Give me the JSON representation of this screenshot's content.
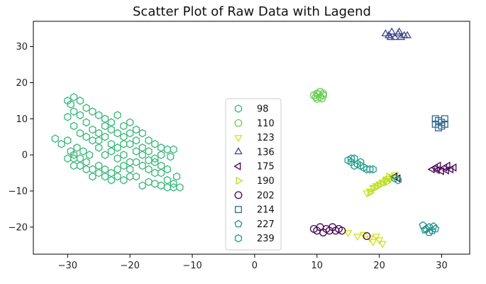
{
  "chart_data": {
    "type": "scatter",
    "title": "Scatter Plot of Raw Data with Lagend",
    "xlabel": "",
    "ylabel": "",
    "xlim": [
      -35.5,
      34.5
    ],
    "ylim": [
      -27.5,
      37
    ],
    "x_ticks": [
      -30,
      -20,
      -10,
      0,
      10,
      20,
      30
    ],
    "x_tick_labels": [
      "−30",
      "−20",
      "−10",
      "0",
      "10",
      "20",
      "30"
    ],
    "y_ticks": [
      -20,
      -10,
      0,
      10,
      20,
      30
    ],
    "y_tick_labels": [
      "−20",
      "−10",
      "0",
      "10",
      "20",
      "30"
    ],
    "grid": false,
    "legend_position": "lower-center",
    "series": [
      {
        "name": "98",
        "marker": "hexagon",
        "color": "#35b779",
        "points": [
          [
            -32,
            4.5
          ],
          [
            -31,
            3
          ],
          [
            -30,
            4
          ],
          [
            -29.5,
            1
          ],
          [
            -29,
            0
          ],
          [
            -28.5,
            2
          ],
          [
            -27.5,
            1
          ],
          [
            -26.5,
            0
          ],
          [
            -25,
            2
          ],
          [
            -24,
            0
          ],
          [
            -23,
            1
          ],
          [
            -22,
            -1
          ],
          [
            -21,
            0
          ],
          [
            -20,
            -2
          ],
          [
            -19,
            -2
          ],
          [
            -18,
            -3
          ],
          [
            -17,
            -4
          ],
          [
            -16,
            -5
          ],
          [
            -15,
            -5
          ],
          [
            -14,
            -7
          ],
          [
            -13,
            -8
          ],
          [
            -12,
            -9
          ],
          [
            -12.5,
            -6
          ],
          [
            -13,
            -9
          ],
          [
            -14,
            -9
          ],
          [
            -15,
            -8.5
          ],
          [
            -16,
            -8
          ],
          [
            -17,
            -7.5
          ],
          [
            -18,
            -8.5
          ],
          [
            -19,
            -6
          ],
          [
            -20,
            -4
          ],
          [
            -21,
            -3
          ],
          [
            -22,
            -4
          ],
          [
            -23,
            -5
          ],
          [
            -24,
            -4
          ],
          [
            -25,
            -3
          ],
          [
            -26,
            -4
          ],
          [
            -27,
            -2
          ],
          [
            -28,
            -1
          ],
          [
            -29,
            -3
          ],
          [
            -30,
            15
          ],
          [
            -29.5,
            14
          ],
          [
            -29,
            16
          ],
          [
            -28,
            15
          ],
          [
            -27,
            13
          ],
          [
            -26,
            12
          ],
          [
            -25,
            11
          ],
          [
            -24,
            10
          ],
          [
            -23,
            9
          ],
          [
            -22,
            11
          ],
          [
            -21,
            8
          ],
          [
            -20,
            9
          ],
          [
            -19,
            7
          ],
          [
            -18,
            6
          ],
          [
            -17,
            4
          ],
          [
            -16,
            3
          ],
          [
            -15,
            2
          ],
          [
            -14,
            1.5
          ],
          [
            -13,
            1.5
          ],
          [
            -13.5,
            -0.5
          ],
          [
            -15,
            0
          ],
          [
            -16,
            -1
          ],
          [
            -17,
            -1.5
          ],
          [
            -18,
            0
          ],
          [
            -19,
            1
          ],
          [
            -20,
            3
          ],
          [
            -21,
            5
          ],
          [
            -22,
            6
          ],
          [
            -23,
            7
          ],
          [
            -24,
            8
          ],
          [
            -25,
            6
          ],
          [
            -26,
            7
          ],
          [
            -27,
            9
          ],
          [
            -28,
            11
          ],
          [
            -29,
            12
          ],
          [
            -30,
            10.5
          ],
          [
            -29,
            8
          ],
          [
            -28,
            6
          ],
          [
            -27,
            5
          ],
          [
            -26,
            4
          ],
          [
            -25,
            4
          ],
          [
            -24,
            5
          ],
          [
            -23,
            3
          ],
          [
            -22,
            2
          ],
          [
            -21,
            3
          ],
          [
            -20,
            6
          ],
          [
            -19,
            4
          ],
          [
            -18,
            2
          ],
          [
            -17,
            1
          ],
          [
            -16,
            -2
          ],
          [
            -15,
            -3
          ],
          [
            -14,
            -4
          ],
          [
            -20,
            -6
          ],
          [
            -21,
            -7
          ],
          [
            -22,
            -6
          ],
          [
            -23,
            -7
          ],
          [
            -24,
            -6
          ],
          [
            -25,
            -5
          ],
          [
            -26,
            -6
          ],
          [
            -27,
            -4
          ],
          [
            -28,
            -3
          ],
          [
            -29,
            -1
          ],
          [
            -30,
            -1
          ]
        ]
      },
      {
        "name": "110",
        "marker": "circle",
        "color": "#6ccd5a",
        "points": [
          [
            9.5,
            16.5
          ],
          [
            10,
            17
          ],
          [
            10.5,
            16
          ],
          [
            11,
            16.5
          ],
          [
            10,
            15.5
          ],
          [
            10.5,
            17.5
          ],
          [
            9.8,
            16
          ],
          [
            11,
            17
          ],
          [
            10.8,
            15.6
          ],
          [
            10.2,
            16.8
          ]
        ]
      },
      {
        "name": "123",
        "marker": "triangle-down",
        "color": "#d2e21b",
        "points": [
          [
            15,
            -21.5
          ],
          [
            16.5,
            -22.5
          ],
          [
            17.5,
            -22
          ],
          [
            18.5,
            -23
          ],
          [
            19,
            -24
          ],
          [
            19.5,
            -22.5
          ],
          [
            20,
            -23.5
          ],
          [
            20.5,
            -24.5
          ],
          [
            18,
            -10.5
          ],
          [
            18.5,
            -10
          ],
          [
            19,
            -9
          ],
          [
            19.5,
            -8.5
          ],
          [
            20,
            -8
          ],
          [
            20.5,
            -7.5
          ],
          [
            21,
            -7
          ],
          [
            21.5,
            -6.5
          ],
          [
            22,
            -6
          ],
          [
            22.5,
            -5.5
          ]
        ]
      },
      {
        "name": "136",
        "marker": "triangle-up",
        "color": "#3e4989",
        "points": [
          [
            21,
            33.5
          ],
          [
            21.5,
            33
          ],
          [
            22,
            34
          ],
          [
            22.5,
            32.5
          ],
          [
            23,
            33.5
          ],
          [
            23.5,
            32.5
          ],
          [
            24,
            33
          ],
          [
            24.5,
            33
          ],
          [
            21.8,
            32.5
          ],
          [
            23.2,
            34
          ]
        ]
      },
      {
        "name": "175",
        "marker": "triangle-left",
        "color": "#440154",
        "points": [
          [
            28.5,
            -4
          ],
          [
            29,
            -3.5
          ],
          [
            29.5,
            -3
          ],
          [
            30,
            -4.5
          ],
          [
            30.5,
            -3.5
          ],
          [
            31,
            -3
          ],
          [
            31.5,
            -4
          ],
          [
            32,
            -3.5
          ],
          [
            29.3,
            -4.2
          ],
          [
            30.8,
            -4.3
          ],
          [
            22.5,
            -6
          ],
          [
            23,
            -6.5
          ]
        ]
      },
      {
        "name": "190",
        "marker": "triangle-right",
        "color": "#b5de2b",
        "points": [
          [
            18.5,
            -10.5
          ],
          [
            19,
            -9.5
          ],
          [
            19.5,
            -9
          ],
          [
            20,
            -8.5
          ],
          [
            20.5,
            -8
          ],
          [
            21,
            -7
          ],
          [
            21.5,
            -6
          ],
          [
            22,
            -6.5
          ],
          [
            21.2,
            -7.6
          ]
        ]
      },
      {
        "name": "202",
        "marker": "circle",
        "color": "#440154",
        "points": [
          [
            9.5,
            -20.5
          ],
          [
            10,
            -21
          ],
          [
            10.5,
            -20
          ],
          [
            11,
            -21.5
          ],
          [
            11.5,
            -20.5
          ],
          [
            12,
            -21
          ],
          [
            12.5,
            -20
          ],
          [
            13,
            -21
          ],
          [
            13.5,
            -20.5
          ],
          [
            14,
            -21
          ],
          [
            18,
            -22.5
          ]
        ]
      },
      {
        "name": "214",
        "marker": "square",
        "color": "#31688e",
        "points": [
          [
            29,
            8.5
          ],
          [
            29.5,
            9.5
          ],
          [
            30,
            9
          ],
          [
            29.5,
            7.5
          ],
          [
            30.5,
            10
          ],
          [
            29,
            10
          ],
          [
            30,
            8
          ],
          [
            30.5,
            8.5
          ]
        ]
      },
      {
        "name": "227",
        "marker": "pentagon",
        "color": "#21918c",
        "points": [
          [
            27,
            -19.5
          ],
          [
            27.5,
            -20.5
          ],
          [
            28,
            -20
          ],
          [
            28.5,
            -21
          ],
          [
            29,
            -20.5
          ],
          [
            28,
            -21.5
          ],
          [
            27.3,
            -20.8
          ],
          [
            28.7,
            -19.8
          ]
        ]
      },
      {
        "name": "239",
        "marker": "hexagon",
        "color": "#1f9e89",
        "points": [
          [
            15,
            -1.5
          ],
          [
            15.5,
            -2
          ],
          [
            16,
            -1
          ],
          [
            16.5,
            -2.5
          ],
          [
            17,
            -3
          ],
          [
            17.5,
            -3.5
          ],
          [
            18,
            -4
          ],
          [
            18.5,
            -4
          ],
          [
            15.5,
            -1
          ],
          [
            16,
            -3
          ],
          [
            17,
            -2
          ],
          [
            19,
            -4
          ],
          [
            22.5,
            -6.5
          ],
          [
            23,
            -7
          ]
        ]
      }
    ]
  }
}
